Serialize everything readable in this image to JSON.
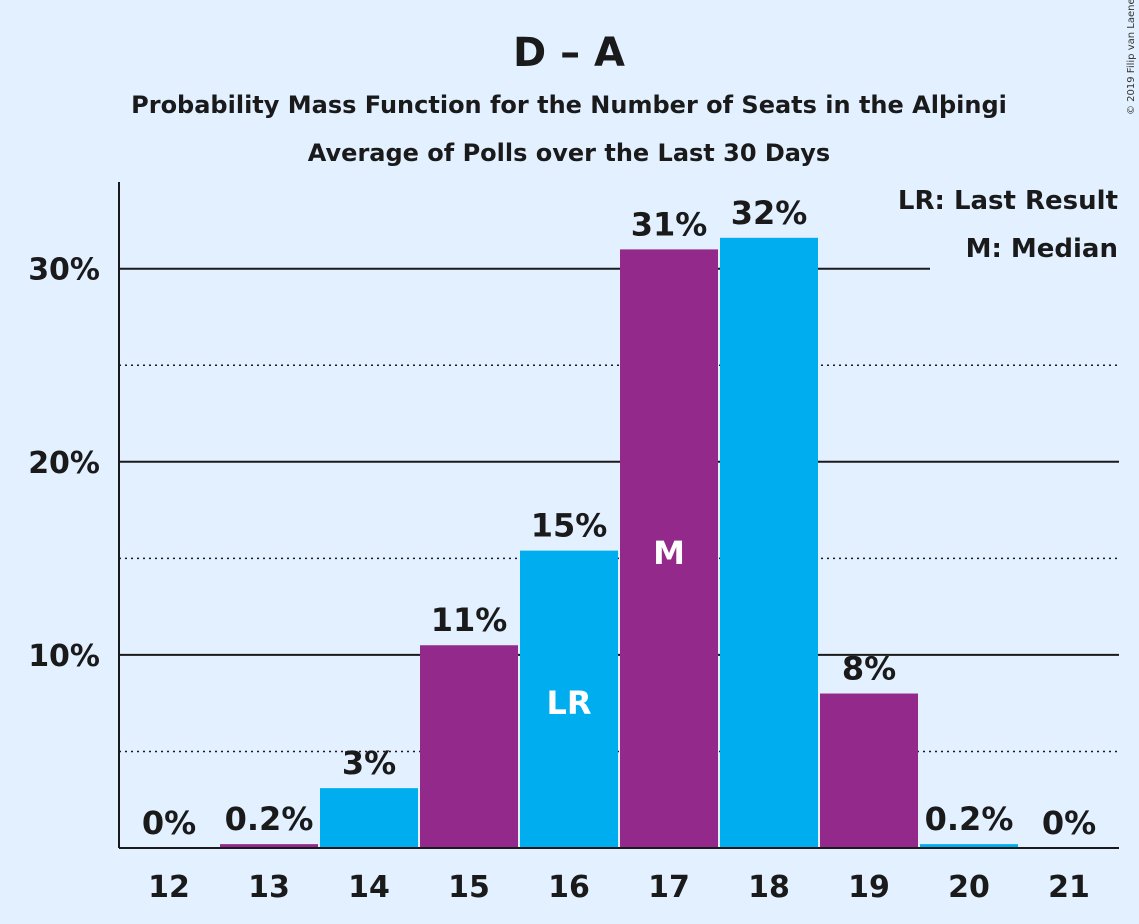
{
  "chart_data": {
    "type": "bar",
    "title": "D – A",
    "subtitle_1": "Probability Mass Function for the Number of Seats in the Alþingi",
    "subtitle_2": "Average of Polls over the Last 30 Days",
    "categories": [
      "12",
      "13",
      "14",
      "15",
      "16",
      "17",
      "18",
      "19",
      "20",
      "21"
    ],
    "values": [
      0,
      0.2,
      3.1,
      10.5,
      15.4,
      31.0,
      31.6,
      8.0,
      0.2,
      0
    ],
    "value_labels": [
      "0%",
      "0.2%",
      "3%",
      "11%",
      "15%",
      "31%",
      "32%",
      "8%",
      "0.2%",
      "0%"
    ],
    "bar_colors": [
      "#932a8b",
      "#932a8b",
      "#00aeef",
      "#932a8b",
      "#00aeef",
      "#932a8b",
      "#00aeef",
      "#932a8b",
      "#00aeef",
      "#932a8b"
    ],
    "inside_labels": {
      "16": "LR",
      "17": "M"
    },
    "yticks": [
      10,
      20,
      30
    ],
    "ytick_labels": [
      "10%",
      "20%",
      "30%"
    ],
    "ylim": [
      0,
      34.5
    ],
    "grid": "solid at labeled ticks, dotted at 5/15/25",
    "legend": [
      "LR: Last Result",
      "M: Median"
    ],
    "legend_placement": "top-right",
    "copyright": "© 2019 Filip van Laenen"
  },
  "colors": {
    "background": "#e2f0ff",
    "purple": "#932a8b",
    "blue": "#00aeef",
    "text": "#1a1a1a"
  }
}
